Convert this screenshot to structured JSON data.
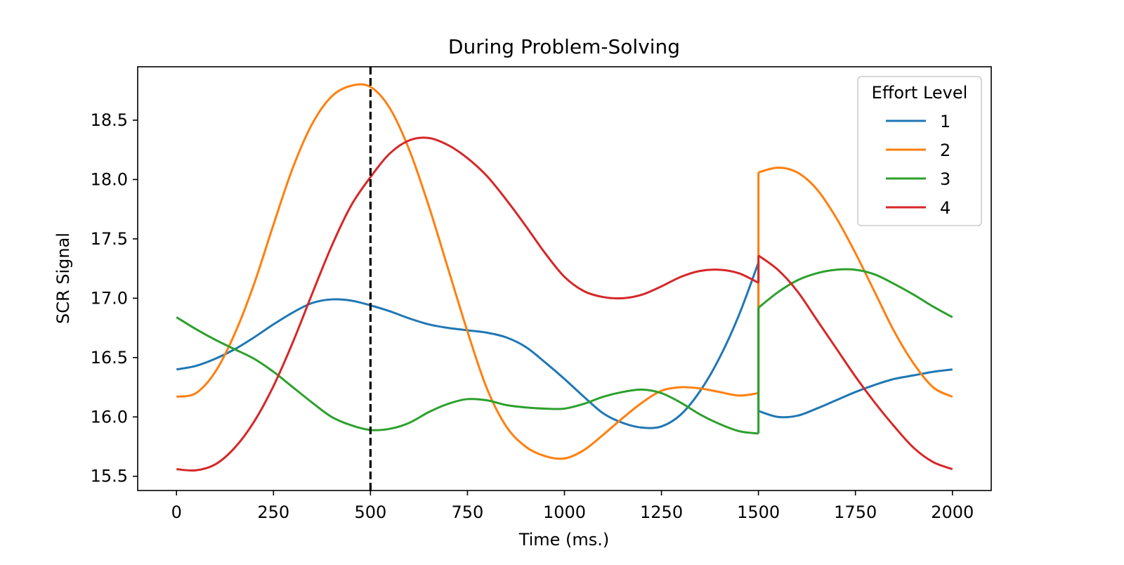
{
  "chart_data": {
    "type": "line",
    "title": "During Problem-Solving",
    "xlabel": "Time (ms.)",
    "ylabel": "SCR Signal",
    "xlim": [
      -100,
      2100
    ],
    "ylim": [
      15.38,
      18.95
    ],
    "xticks": [
      0,
      250,
      500,
      750,
      1000,
      1250,
      1500,
      1750,
      2000
    ],
    "xtick_labels": [
      "0",
      "250",
      "500",
      "750",
      "1000",
      "1250",
      "1500",
      "1750",
      "2000"
    ],
    "yticks": [
      15.5,
      16.0,
      16.5,
      17.0,
      17.5,
      18.0,
      18.5
    ],
    "ytick_labels": [
      "15.5",
      "16.0",
      "16.5",
      "17.0",
      "17.5",
      "18.0",
      "18.5"
    ],
    "grid": false,
    "legend": {
      "title": "Effort Level",
      "placement": "top-right"
    },
    "vline": {
      "x": 500,
      "style": "dashed",
      "color": "#000000"
    },
    "series": [
      {
        "name": "1",
        "color": "#1f77b4",
        "segments": [
          [
            [
              0,
              16.4
            ],
            [
              50,
              16.43
            ],
            [
              100,
              16.49
            ],
            [
              150,
              16.57
            ],
            [
              200,
              16.67
            ],
            [
              250,
              16.78
            ],
            [
              300,
              16.88
            ],
            [
              350,
              16.96
            ],
            [
              400,
              16.99
            ],
            [
              450,
              16.98
            ],
            [
              500,
              16.94
            ],
            [
              550,
              16.89
            ],
            [
              600,
              16.83
            ],
            [
              650,
              16.78
            ],
            [
              700,
              16.75
            ],
            [
              750,
              16.73
            ],
            [
              800,
              16.71
            ],
            [
              850,
              16.67
            ],
            [
              900,
              16.59
            ],
            [
              950,
              16.46
            ],
            [
              1000,
              16.32
            ],
            [
              1050,
              16.17
            ],
            [
              1100,
              16.03
            ],
            [
              1150,
              15.95
            ],
            [
              1200,
              15.91
            ],
            [
              1250,
              15.92
            ],
            [
              1300,
              16.02
            ],
            [
              1350,
              16.22
            ],
            [
              1400,
              16.5
            ],
            [
              1450,
              16.86
            ],
            [
              1500,
              17.3
            ]
          ],
          [
            [
              1500,
              16.05
            ],
            [
              1550,
              16.0
            ],
            [
              1600,
              16.01
            ],
            [
              1650,
              16.07
            ],
            [
              1700,
              16.14
            ],
            [
              1750,
              16.21
            ],
            [
              1800,
              16.27
            ],
            [
              1850,
              16.32
            ],
            [
              1900,
              16.35
            ],
            [
              1950,
              16.38
            ],
            [
              2000,
              16.4
            ]
          ]
        ]
      },
      {
        "name": "2",
        "color": "#ff7f0e",
        "segments": [
          [
            [
              0,
              16.17
            ],
            [
              50,
              16.2
            ],
            [
              100,
              16.38
            ],
            [
              150,
              16.7
            ],
            [
              200,
              17.12
            ],
            [
              250,
              17.62
            ],
            [
              300,
              18.1
            ],
            [
              350,
              18.47
            ],
            [
              400,
              18.7
            ],
            [
              450,
              18.79
            ],
            [
              500,
              18.78
            ],
            [
              550,
              18.6
            ],
            [
              600,
              18.25
            ],
            [
              650,
              17.78
            ],
            [
              700,
              17.25
            ],
            [
              750,
              16.72
            ],
            [
              800,
              16.24
            ],
            [
              850,
              15.92
            ],
            [
              900,
              15.75
            ],
            [
              950,
              15.67
            ],
            [
              1000,
              15.65
            ],
            [
              1050,
              15.72
            ],
            [
              1100,
              15.85
            ],
            [
              1150,
              15.99
            ],
            [
              1200,
              16.12
            ],
            [
              1250,
              16.22
            ],
            [
              1300,
              16.25
            ],
            [
              1350,
              16.24
            ],
            [
              1400,
              16.21
            ],
            [
              1450,
              16.18
            ],
            [
              1500,
              16.2
            ]
          ],
          [
            [
              1500,
              18.06
            ],
            [
              1550,
              18.1
            ],
            [
              1600,
              18.06
            ],
            [
              1650,
              17.92
            ],
            [
              1700,
              17.68
            ],
            [
              1750,
              17.38
            ],
            [
              1800,
              17.05
            ],
            [
              1850,
              16.72
            ],
            [
              1900,
              16.45
            ],
            [
              1950,
              16.25
            ],
            [
              2000,
              16.17
            ]
          ]
        ]
      },
      {
        "name": "3",
        "color": "#2ca02c",
        "segments": [
          [
            [
              0,
              16.84
            ],
            [
              50,
              16.74
            ],
            [
              100,
              16.65
            ],
            [
              150,
              16.57
            ],
            [
              200,
              16.49
            ],
            [
              250,
              16.38
            ],
            [
              300,
              16.25
            ],
            [
              350,
              16.12
            ],
            [
              400,
              16.0
            ],
            [
              450,
              15.93
            ],
            [
              500,
              15.89
            ],
            [
              550,
              15.9
            ],
            [
              600,
              15.95
            ],
            [
              650,
              16.04
            ],
            [
              700,
              16.11
            ],
            [
              750,
              16.15
            ],
            [
              800,
              16.14
            ],
            [
              850,
              16.1
            ],
            [
              900,
              16.08
            ],
            [
              950,
              16.07
            ],
            [
              1000,
              16.07
            ],
            [
              1050,
              16.11
            ],
            [
              1100,
              16.17
            ],
            [
              1150,
              16.21
            ],
            [
              1200,
              16.23
            ],
            [
              1250,
              16.2
            ],
            [
              1300,
              16.12
            ],
            [
              1350,
              16.02
            ],
            [
              1400,
              15.94
            ],
            [
              1450,
              15.88
            ],
            [
              1500,
              15.86
            ]
          ],
          [
            [
              1500,
              16.92
            ],
            [
              1550,
              17.05
            ],
            [
              1600,
              17.15
            ],
            [
              1650,
              17.21
            ],
            [
              1700,
              17.24
            ],
            [
              1750,
              17.24
            ],
            [
              1800,
              17.2
            ],
            [
              1850,
              17.12
            ],
            [
              1900,
              17.03
            ],
            [
              1950,
              16.93
            ],
            [
              2000,
              16.84
            ]
          ]
        ]
      },
      {
        "name": "4",
        "color": "#d62728",
        "segments": [
          [
            [
              0,
              15.56
            ],
            [
              50,
              15.55
            ],
            [
              100,
              15.6
            ],
            [
              150,
              15.74
            ],
            [
              200,
              15.96
            ],
            [
              250,
              16.26
            ],
            [
              300,
              16.63
            ],
            [
              350,
              17.04
            ],
            [
              400,
              17.44
            ],
            [
              450,
              17.78
            ],
            [
              500,
              18.02
            ],
            [
              550,
              18.22
            ],
            [
              600,
              18.33
            ],
            [
              650,
              18.35
            ],
            [
              700,
              18.29
            ],
            [
              750,
              18.18
            ],
            [
              800,
              18.03
            ],
            [
              850,
              17.83
            ],
            [
              900,
              17.61
            ],
            [
              950,
              17.38
            ],
            [
              1000,
              17.18
            ],
            [
              1050,
              17.06
            ],
            [
              1100,
              17.01
            ],
            [
              1150,
              17.0
            ],
            [
              1200,
              17.03
            ],
            [
              1250,
              17.1
            ],
            [
              1300,
              17.18
            ],
            [
              1350,
              17.23
            ],
            [
              1400,
              17.24
            ],
            [
              1450,
              17.21
            ],
            [
              1500,
              17.13
            ]
          ],
          [
            [
              1500,
              17.36
            ],
            [
              1550,
              17.24
            ],
            [
              1600,
              17.06
            ],
            [
              1650,
              16.82
            ],
            [
              1700,
              16.58
            ],
            [
              1750,
              16.34
            ],
            [
              1800,
              16.12
            ],
            [
              1850,
              15.92
            ],
            [
              1900,
              15.74
            ],
            [
              1950,
              15.62
            ],
            [
              2000,
              15.56
            ]
          ]
        ]
      }
    ]
  }
}
